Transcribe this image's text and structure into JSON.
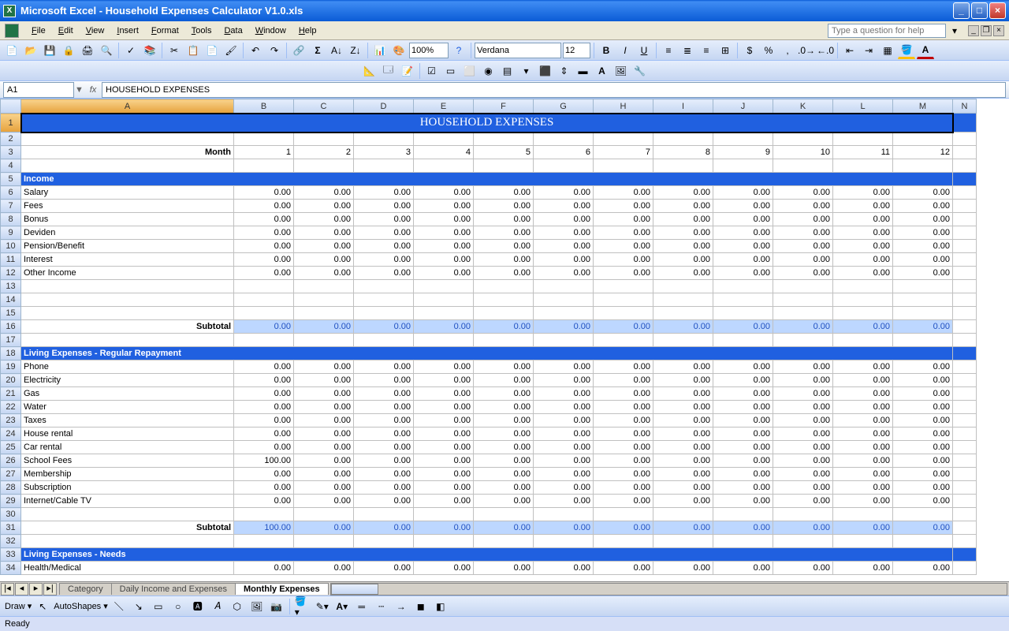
{
  "window": {
    "title": "Microsoft Excel - Household Expenses Calculator V1.0.xls"
  },
  "menus": [
    "File",
    "Edit",
    "View",
    "Insert",
    "Format",
    "Tools",
    "Data",
    "Window",
    "Help"
  ],
  "help_placeholder": "Type a question for help",
  "toolbar": {
    "zoom": "100%",
    "font": "Verdana",
    "size": "12"
  },
  "namebox": "A1",
  "formula": "HOUSEHOLD EXPENSES",
  "columns": [
    "A",
    "B",
    "C",
    "D",
    "E",
    "F",
    "G",
    "H",
    "I",
    "J",
    "K",
    "L",
    "M",
    "N"
  ],
  "sheet": {
    "title": "HOUSEHOLD EXPENSES",
    "month_label": "Month",
    "months": [
      "1",
      "2",
      "3",
      "4",
      "5",
      "6",
      "7",
      "8",
      "9",
      "10",
      "11",
      "12"
    ],
    "subtotal_label": "Subtotal",
    "sections": [
      {
        "row": 5,
        "header": "Income",
        "items": [
          {
            "r": 6,
            "name": "Salary",
            "vals": [
              "0.00",
              "0.00",
              "0.00",
              "0.00",
              "0.00",
              "0.00",
              "0.00",
              "0.00",
              "0.00",
              "0.00",
              "0.00",
              "0.00"
            ]
          },
          {
            "r": 7,
            "name": "Fees",
            "vals": [
              "0.00",
              "0.00",
              "0.00",
              "0.00",
              "0.00",
              "0.00",
              "0.00",
              "0.00",
              "0.00",
              "0.00",
              "0.00",
              "0.00"
            ]
          },
          {
            "r": 8,
            "name": "Bonus",
            "vals": [
              "0.00",
              "0.00",
              "0.00",
              "0.00",
              "0.00",
              "0.00",
              "0.00",
              "0.00",
              "0.00",
              "0.00",
              "0.00",
              "0.00"
            ]
          },
          {
            "r": 9,
            "name": "Deviden",
            "vals": [
              "0.00",
              "0.00",
              "0.00",
              "0.00",
              "0.00",
              "0.00",
              "0.00",
              "0.00",
              "0.00",
              "0.00",
              "0.00",
              "0.00"
            ]
          },
          {
            "r": 10,
            "name": "Pension/Benefit",
            "vals": [
              "0.00",
              "0.00",
              "0.00",
              "0.00",
              "0.00",
              "0.00",
              "0.00",
              "0.00",
              "0.00",
              "0.00",
              "0.00",
              "0.00"
            ]
          },
          {
            "r": 11,
            "name": "Interest",
            "vals": [
              "0.00",
              "0.00",
              "0.00",
              "0.00",
              "0.00",
              "0.00",
              "0.00",
              "0.00",
              "0.00",
              "0.00",
              "0.00",
              "0.00"
            ]
          },
          {
            "r": 12,
            "name": "Other Income",
            "vals": [
              "0.00",
              "0.00",
              "0.00",
              "0.00",
              "0.00",
              "0.00",
              "0.00",
              "0.00",
              "0.00",
              "0.00",
              "0.00",
              "0.00"
            ]
          }
        ],
        "blank": [
          13,
          14,
          15
        ],
        "subtotal_row": 16,
        "subtotals": [
          "0.00",
          "0.00",
          "0.00",
          "0.00",
          "0.00",
          "0.00",
          "0.00",
          "0.00",
          "0.00",
          "0.00",
          "0.00",
          "0.00"
        ],
        "post_blank": [
          17
        ]
      },
      {
        "row": 18,
        "header": "Living Expenses - Regular Repayment",
        "items": [
          {
            "r": 19,
            "name": "Phone",
            "vals": [
              "0.00",
              "0.00",
              "0.00",
              "0.00",
              "0.00",
              "0.00",
              "0.00",
              "0.00",
              "0.00",
              "0.00",
              "0.00",
              "0.00"
            ]
          },
          {
            "r": 20,
            "name": "Electricity",
            "vals": [
              "0.00",
              "0.00",
              "0.00",
              "0.00",
              "0.00",
              "0.00",
              "0.00",
              "0.00",
              "0.00",
              "0.00",
              "0.00",
              "0.00"
            ]
          },
          {
            "r": 21,
            "name": "Gas",
            "vals": [
              "0.00",
              "0.00",
              "0.00",
              "0.00",
              "0.00",
              "0.00",
              "0.00",
              "0.00",
              "0.00",
              "0.00",
              "0.00",
              "0.00"
            ]
          },
          {
            "r": 22,
            "name": "Water",
            "vals": [
              "0.00",
              "0.00",
              "0.00",
              "0.00",
              "0.00",
              "0.00",
              "0.00",
              "0.00",
              "0.00",
              "0.00",
              "0.00",
              "0.00"
            ]
          },
          {
            "r": 23,
            "name": "Taxes",
            "vals": [
              "0.00",
              "0.00",
              "0.00",
              "0.00",
              "0.00",
              "0.00",
              "0.00",
              "0.00",
              "0.00",
              "0.00",
              "0.00",
              "0.00"
            ]
          },
          {
            "r": 24,
            "name": "House rental",
            "vals": [
              "0.00",
              "0.00",
              "0.00",
              "0.00",
              "0.00",
              "0.00",
              "0.00",
              "0.00",
              "0.00",
              "0.00",
              "0.00",
              "0.00"
            ]
          },
          {
            "r": 25,
            "name": "Car rental",
            "vals": [
              "0.00",
              "0.00",
              "0.00",
              "0.00",
              "0.00",
              "0.00",
              "0.00",
              "0.00",
              "0.00",
              "0.00",
              "0.00",
              "0.00"
            ]
          },
          {
            "r": 26,
            "name": "School Fees",
            "vals": [
              "100.00",
              "0.00",
              "0.00",
              "0.00",
              "0.00",
              "0.00",
              "0.00",
              "0.00",
              "0.00",
              "0.00",
              "0.00",
              "0.00"
            ]
          },
          {
            "r": 27,
            "name": "Membership",
            "vals": [
              "0.00",
              "0.00",
              "0.00",
              "0.00",
              "0.00",
              "0.00",
              "0.00",
              "0.00",
              "0.00",
              "0.00",
              "0.00",
              "0.00"
            ]
          },
          {
            "r": 28,
            "name": "Subscription",
            "vals": [
              "0.00",
              "0.00",
              "0.00",
              "0.00",
              "0.00",
              "0.00",
              "0.00",
              "0.00",
              "0.00",
              "0.00",
              "0.00",
              "0.00"
            ]
          },
          {
            "r": 29,
            "name": "Internet/Cable TV",
            "vals": [
              "0.00",
              "0.00",
              "0.00",
              "0.00",
              "0.00",
              "0.00",
              "0.00",
              "0.00",
              "0.00",
              "0.00",
              "0.00",
              "0.00"
            ]
          }
        ],
        "blank": [
          30
        ],
        "subtotal_row": 31,
        "subtotals": [
          "100.00",
          "0.00",
          "0.00",
          "0.00",
          "0.00",
          "0.00",
          "0.00",
          "0.00",
          "0.00",
          "0.00",
          "0.00",
          "0.00"
        ],
        "post_blank": [
          32
        ]
      },
      {
        "row": 33,
        "header": "Living Expenses - Needs",
        "items": [
          {
            "r": 34,
            "name": "Health/Medical",
            "vals": [
              "0.00",
              "0.00",
              "0.00",
              "0.00",
              "0.00",
              "0.00",
              "0.00",
              "0.00",
              "0.00",
              "0.00",
              "0.00",
              "0.00"
            ]
          }
        ],
        "blank": [],
        "subtotal_row": null,
        "subtotals": [],
        "post_blank": []
      }
    ]
  },
  "tabs": {
    "items": [
      "Category",
      "Daily Income and Expenses",
      "Monthly Expenses"
    ],
    "active": 2
  },
  "draw": {
    "label": "Draw",
    "autoshapes": "AutoShapes"
  },
  "status": "Ready",
  "colors": {
    "titlebar": "#0a5bd6",
    "section_bg": "#2060e0",
    "subtotal_bg": "#bdd7ff"
  }
}
